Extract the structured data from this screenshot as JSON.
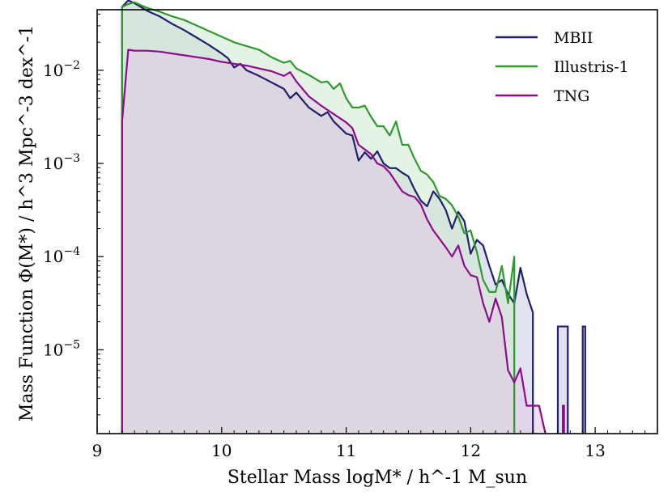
{
  "chart_data": {
    "type": "area",
    "title": "",
    "xlabel": "Stellar Mass logM* / h^-1 M_sun",
    "ylabel": "Mass Function Φ(M*) / h^3 Mpc^-3 dex^-1",
    "xlim": [
      9,
      13.5
    ],
    "ylim_log10": [
      -5.9,
      -1.35
    ],
    "yscale": "log",
    "grid": false,
    "legend": "top-right",
    "xticks": [
      "9",
      "10",
      "11",
      "12",
      "13"
    ],
    "yticks": [
      {
        "value": 0.01,
        "base": "10",
        "exp": "−2"
      },
      {
        "value": 0.001,
        "base": "10",
        "exp": "−3"
      },
      {
        "value": 0.0001,
        "base": "10",
        "exp": "−4"
      },
      {
        "value": 1e-05,
        "base": "10",
        "exp": "−5"
      }
    ],
    "series": [
      {
        "name": "MBII",
        "color": "#1f1f6e",
        "fill": "#c8cbe2",
        "points": [
          [
            9.2,
            -5.9
          ],
          [
            9.2,
            -1.32
          ],
          [
            9.25,
            -1.25
          ],
          [
            9.3,
            -1.28
          ],
          [
            9.35,
            -1.32
          ],
          [
            9.4,
            -1.36
          ],
          [
            9.5,
            -1.42
          ],
          [
            9.6,
            -1.5
          ],
          [
            9.7,
            -1.57
          ],
          [
            9.8,
            -1.65
          ],
          [
            9.9,
            -1.73
          ],
          [
            10.0,
            -1.82
          ],
          [
            10.05,
            -1.87
          ],
          [
            10.1,
            -1.97
          ],
          [
            10.15,
            -1.93
          ],
          [
            10.2,
            -2.0
          ],
          [
            10.3,
            -2.06
          ],
          [
            10.4,
            -2.13
          ],
          [
            10.5,
            -2.2
          ],
          [
            10.55,
            -2.3
          ],
          [
            10.6,
            -2.24
          ],
          [
            10.7,
            -2.4
          ],
          [
            10.8,
            -2.49
          ],
          [
            10.85,
            -2.45
          ],
          [
            10.9,
            -2.55
          ],
          [
            11.0,
            -2.68
          ],
          [
            11.05,
            -2.7
          ],
          [
            11.1,
            -2.97
          ],
          [
            11.15,
            -2.88
          ],
          [
            11.2,
            -2.95
          ],
          [
            11.25,
            -2.87
          ],
          [
            11.3,
            -3.0
          ],
          [
            11.35,
            -3.05
          ],
          [
            11.4,
            -3.05
          ],
          [
            11.45,
            -3.1
          ],
          [
            11.5,
            -3.14
          ],
          [
            11.55,
            -3.28
          ],
          [
            11.6,
            -3.4
          ],
          [
            11.65,
            -3.46
          ],
          [
            11.7,
            -3.3
          ],
          [
            11.75,
            -3.38
          ],
          [
            11.8,
            -3.5
          ],
          [
            11.85,
            -3.7
          ],
          [
            11.9,
            -3.52
          ],
          [
            11.95,
            -3.62
          ],
          [
            12.0,
            -3.97
          ],
          [
            12.05,
            -3.82
          ],
          [
            12.1,
            -3.88
          ],
          [
            12.15,
            -4.1
          ],
          [
            12.2,
            -4.3
          ],
          [
            12.25,
            -4.25
          ],
          [
            12.3,
            -4.4
          ],
          [
            12.35,
            -4.5
          ],
          [
            12.4,
            -4.12
          ],
          [
            12.45,
            -4.4
          ],
          [
            12.5,
            -4.6
          ],
          [
            12.5,
            -5.9
          ]
        ],
        "extra_bins": [
          [
            12.7,
            12.78,
            -4.75
          ],
          [
            12.9,
            12.92,
            -4.75
          ]
        ]
      },
      {
        "name": "Illustris-1",
        "color": "#2e9a2e",
        "fill": "#cde9cd",
        "points": [
          [
            9.2,
            -5.9
          ],
          [
            9.2,
            -1.32
          ],
          [
            9.25,
            -1.29
          ],
          [
            9.3,
            -1.27
          ],
          [
            9.35,
            -1.3
          ],
          [
            9.4,
            -1.33
          ],
          [
            9.5,
            -1.37
          ],
          [
            9.6,
            -1.42
          ],
          [
            9.7,
            -1.46
          ],
          [
            9.8,
            -1.52
          ],
          [
            9.9,
            -1.58
          ],
          [
            10.0,
            -1.64
          ],
          [
            10.1,
            -1.7
          ],
          [
            10.2,
            -1.74
          ],
          [
            10.3,
            -1.78
          ],
          [
            10.4,
            -1.86
          ],
          [
            10.5,
            -1.92
          ],
          [
            10.55,
            -1.9
          ],
          [
            10.6,
            -1.98
          ],
          [
            10.7,
            -2.05
          ],
          [
            10.8,
            -2.13
          ],
          [
            10.85,
            -2.12
          ],
          [
            10.9,
            -2.2
          ],
          [
            10.95,
            -2.14
          ],
          [
            11.0,
            -2.3
          ],
          [
            11.05,
            -2.4
          ],
          [
            11.1,
            -2.4
          ],
          [
            11.15,
            -2.38
          ],
          [
            11.2,
            -2.5
          ],
          [
            11.25,
            -2.6
          ],
          [
            11.3,
            -2.6
          ],
          [
            11.35,
            -2.7
          ],
          [
            11.4,
            -2.55
          ],
          [
            11.45,
            -2.8
          ],
          [
            11.5,
            -2.8
          ],
          [
            11.55,
            -2.95
          ],
          [
            11.6,
            -3.08
          ],
          [
            11.65,
            -3.12
          ],
          [
            11.7,
            -3.2
          ],
          [
            11.75,
            -3.35
          ],
          [
            11.8,
            -3.38
          ],
          [
            11.85,
            -3.45
          ],
          [
            11.9,
            -3.57
          ],
          [
            11.95,
            -3.75
          ],
          [
            12.0,
            -3.72
          ],
          [
            12.05,
            -3.95
          ],
          [
            12.1,
            -4.25
          ],
          [
            12.15,
            -4.38
          ],
          [
            12.2,
            -4.38
          ],
          [
            12.25,
            -4.1
          ],
          [
            12.3,
            -4.5
          ],
          [
            12.35,
            -4.0
          ],
          [
            12.35,
            -5.9
          ]
        ]
      },
      {
        "name": "TNG",
        "color": "#8e0a8e",
        "fill": "#e3c8e3",
        "points": [
          [
            9.2,
            -5.9
          ],
          [
            9.2,
            -2.55
          ],
          [
            9.25,
            -1.78
          ],
          [
            9.3,
            -1.79
          ],
          [
            9.4,
            -1.79
          ],
          [
            9.5,
            -1.8
          ],
          [
            9.6,
            -1.82
          ],
          [
            9.7,
            -1.84
          ],
          [
            9.8,
            -1.86
          ],
          [
            9.9,
            -1.88
          ],
          [
            10.0,
            -1.91
          ],
          [
            10.1,
            -1.93
          ],
          [
            10.2,
            -1.95
          ],
          [
            10.3,
            -1.98
          ],
          [
            10.4,
            -2.01
          ],
          [
            10.5,
            -2.06
          ],
          [
            10.55,
            -2.02
          ],
          [
            10.6,
            -2.12
          ],
          [
            10.7,
            -2.28
          ],
          [
            10.8,
            -2.38
          ],
          [
            10.9,
            -2.47
          ],
          [
            11.0,
            -2.56
          ],
          [
            11.05,
            -2.62
          ],
          [
            11.1,
            -2.8
          ],
          [
            11.2,
            -2.9
          ],
          [
            11.25,
            -3.0
          ],
          [
            11.3,
            -3.03
          ],
          [
            11.35,
            -3.1
          ],
          [
            11.4,
            -3.2
          ],
          [
            11.45,
            -3.3
          ],
          [
            11.5,
            -3.34
          ],
          [
            11.55,
            -3.36
          ],
          [
            11.6,
            -3.44
          ],
          [
            11.65,
            -3.6
          ],
          [
            11.7,
            -3.72
          ],
          [
            11.8,
            -3.9
          ],
          [
            11.85,
            -4.0
          ],
          [
            11.9,
            -3.88
          ],
          [
            11.95,
            -4.1
          ],
          [
            12.0,
            -4.2
          ],
          [
            12.05,
            -4.22
          ],
          [
            12.1,
            -4.5
          ],
          [
            12.15,
            -4.7
          ],
          [
            12.2,
            -4.45
          ],
          [
            12.25,
            -4.65
          ],
          [
            12.3,
            -5.22
          ],
          [
            12.35,
            -5.35
          ],
          [
            12.4,
            -5.2
          ],
          [
            12.45,
            -5.6
          ],
          [
            12.55,
            -5.6
          ],
          [
            12.6,
            -5.9
          ]
        ],
        "extra_bins": [
          [
            12.74,
            12.75,
            -5.6
          ]
        ]
      }
    ]
  }
}
